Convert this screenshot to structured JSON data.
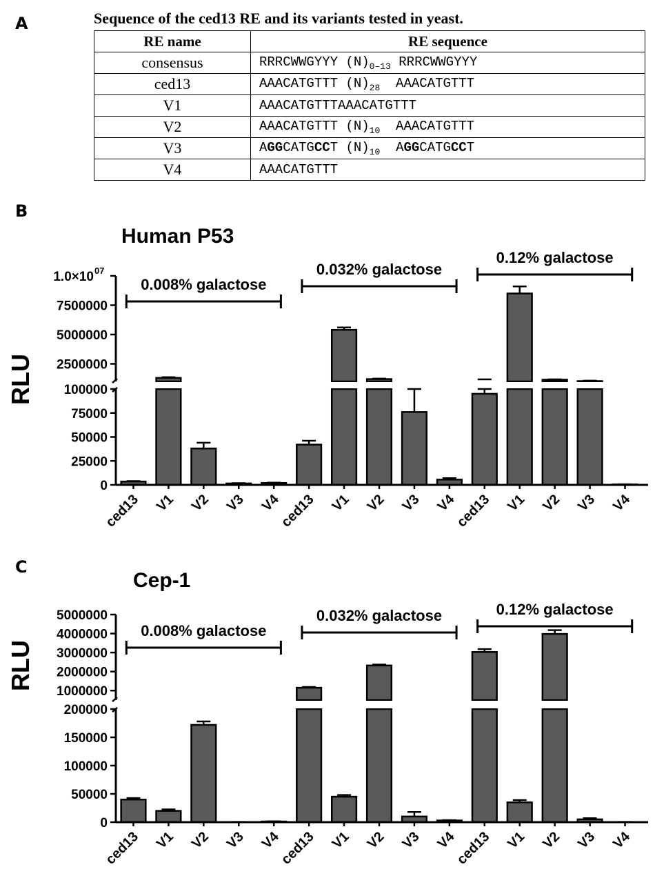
{
  "panels": {
    "a": "A",
    "b": "B",
    "c": "C"
  },
  "table": {
    "caption": "Sequence of the ced13 RE and its variants tested in yeast.",
    "headers": [
      "RE name",
      "RE sequence"
    ],
    "rows": [
      {
        "name": "consensus",
        "seq": [
          {
            "t": "RRRCWWGYYY (N)",
            "b": false
          },
          {
            "t": "0–13",
            "sub": true
          },
          {
            "t": " RRRCWWGYYY",
            "b": false
          }
        ]
      },
      {
        "name": "ced13",
        "seq": [
          {
            "t": "AAACATGTTT (N)",
            "b": false
          },
          {
            "t": "28",
            "sub": true
          },
          {
            "t": "  AAACATGTTT",
            "b": false
          }
        ]
      },
      {
        "name": "V1",
        "seq": [
          {
            "t": "AAACATGTTTAAACATGTTT",
            "b": false
          }
        ]
      },
      {
        "name": "V2",
        "seq": [
          {
            "t": "AAACATGTTT (N)",
            "b": false
          },
          {
            "t": "10",
            "sub": true
          },
          {
            "t": "  AAACATGTTT",
            "b": false
          }
        ]
      },
      {
        "name": "V3",
        "seq": [
          {
            "t": "A",
            "b": false
          },
          {
            "t": "GG",
            "b": true
          },
          {
            "t": "CATG",
            "b": false
          },
          {
            "t": "CC",
            "b": true
          },
          {
            "t": "T (N)",
            "b": false
          },
          {
            "t": "10",
            "sub": true
          },
          {
            "t": "  A",
            "b": false
          },
          {
            "t": "GG",
            "b": true
          },
          {
            "t": "CATG",
            "b": false
          },
          {
            "t": "CC",
            "b": true
          },
          {
            "t": "T",
            "b": false
          }
        ]
      },
      {
        "name": "V4",
        "seq": [
          {
            "t": "AAACATGTTT",
            "b": false
          }
        ]
      }
    ]
  },
  "colors": {
    "bar": "#5a5a5a",
    "axis": "#000000"
  },
  "chart_data": [
    {
      "type": "bar",
      "title": "Human P53",
      "ylabel": "RLU",
      "categories": [
        "ced13",
        "V1",
        "V2",
        "V3",
        "V4",
        "ced13",
        "V1",
        "V2",
        "V3",
        "V4",
        "ced13",
        "V1",
        "V2",
        "V3",
        "V4"
      ],
      "values": [
        3500,
        1300000,
        38000,
        1500,
        2000,
        42000,
        5400000,
        1200000,
        76000,
        5500,
        95000,
        8500000,
        1150000,
        1030000,
        500
      ],
      "errors": [
        500,
        60000,
        6000,
        300,
        300,
        4000,
        200000,
        40000,
        30000,
        1500,
        6000,
        600000,
        30000,
        30000,
        100
      ],
      "errors_clipped": [
        false,
        false,
        false,
        false,
        false,
        false,
        false,
        false,
        false,
        false,
        true,
        false,
        false,
        true,
        false
      ],
      "groups": [
        {
          "label": "0.008% galactose",
          "start": 0,
          "end": 4
        },
        {
          "label": "0.032% galactose",
          "start": 5,
          "end": 9
        },
        {
          "label": "0.12% galactose",
          "start": 10,
          "end": 14
        }
      ],
      "lower_axis": {
        "ylim": [
          0,
          100000
        ],
        "ticks": [
          "0",
          "25000",
          "50000",
          "75000",
          "100000"
        ],
        "tick_values": [
          0,
          25000,
          50000,
          75000,
          100000
        ]
      },
      "upper_axis": {
        "ylim": [
          1000000,
          10000000
        ],
        "ticks": [
          "2500000",
          "5000000",
          "7500000",
          "1.0×10"
        ],
        "tick_values": [
          2500000,
          5000000,
          7500000,
          10000000
        ],
        "top_exponent": "07"
      }
    },
    {
      "type": "bar",
      "title": "Cep-1",
      "ylabel": "RLU",
      "categories": [
        "ced13",
        "V1",
        "V2",
        "V3",
        "V4",
        "ced13",
        "V1",
        "V2",
        "V3",
        "V4",
        "ced13",
        "V1",
        "V2",
        "V3",
        "V4"
      ],
      "values": [
        40000,
        20000,
        172000,
        300,
        1200,
        1150000,
        45000,
        2320000,
        10000,
        3000,
        3030000,
        35000,
        3980000,
        5000,
        300
      ],
      "errors": [
        2500,
        2500,
        6000,
        100,
        300,
        40000,
        3000,
        50000,
        8000,
        500,
        150000,
        4000,
        200000,
        2000,
        100
      ],
      "errors_clipped": [
        false,
        false,
        false,
        false,
        false,
        false,
        false,
        false,
        false,
        false,
        false,
        false,
        false,
        false,
        false
      ],
      "groups": [
        {
          "label": "0.008% galactose",
          "start": 0,
          "end": 4
        },
        {
          "label": "0.032% galactose",
          "start": 5,
          "end": 9
        },
        {
          "label": "0.12% galactose",
          "start": 10,
          "end": 14
        }
      ],
      "lower_axis": {
        "ylim": [
          0,
          200000
        ],
        "ticks": [
          "0",
          "50000",
          "100000",
          "150000",
          "200000"
        ],
        "tick_values": [
          0,
          50000,
          100000,
          150000,
          200000
        ]
      },
      "upper_axis": {
        "ylim": [
          500000,
          5000000
        ],
        "ticks": [
          "1000000",
          "2000000",
          "3000000",
          "4000000",
          "5000000"
        ],
        "tick_values": [
          1000000,
          2000000,
          3000000,
          4000000,
          5000000
        ]
      }
    }
  ]
}
